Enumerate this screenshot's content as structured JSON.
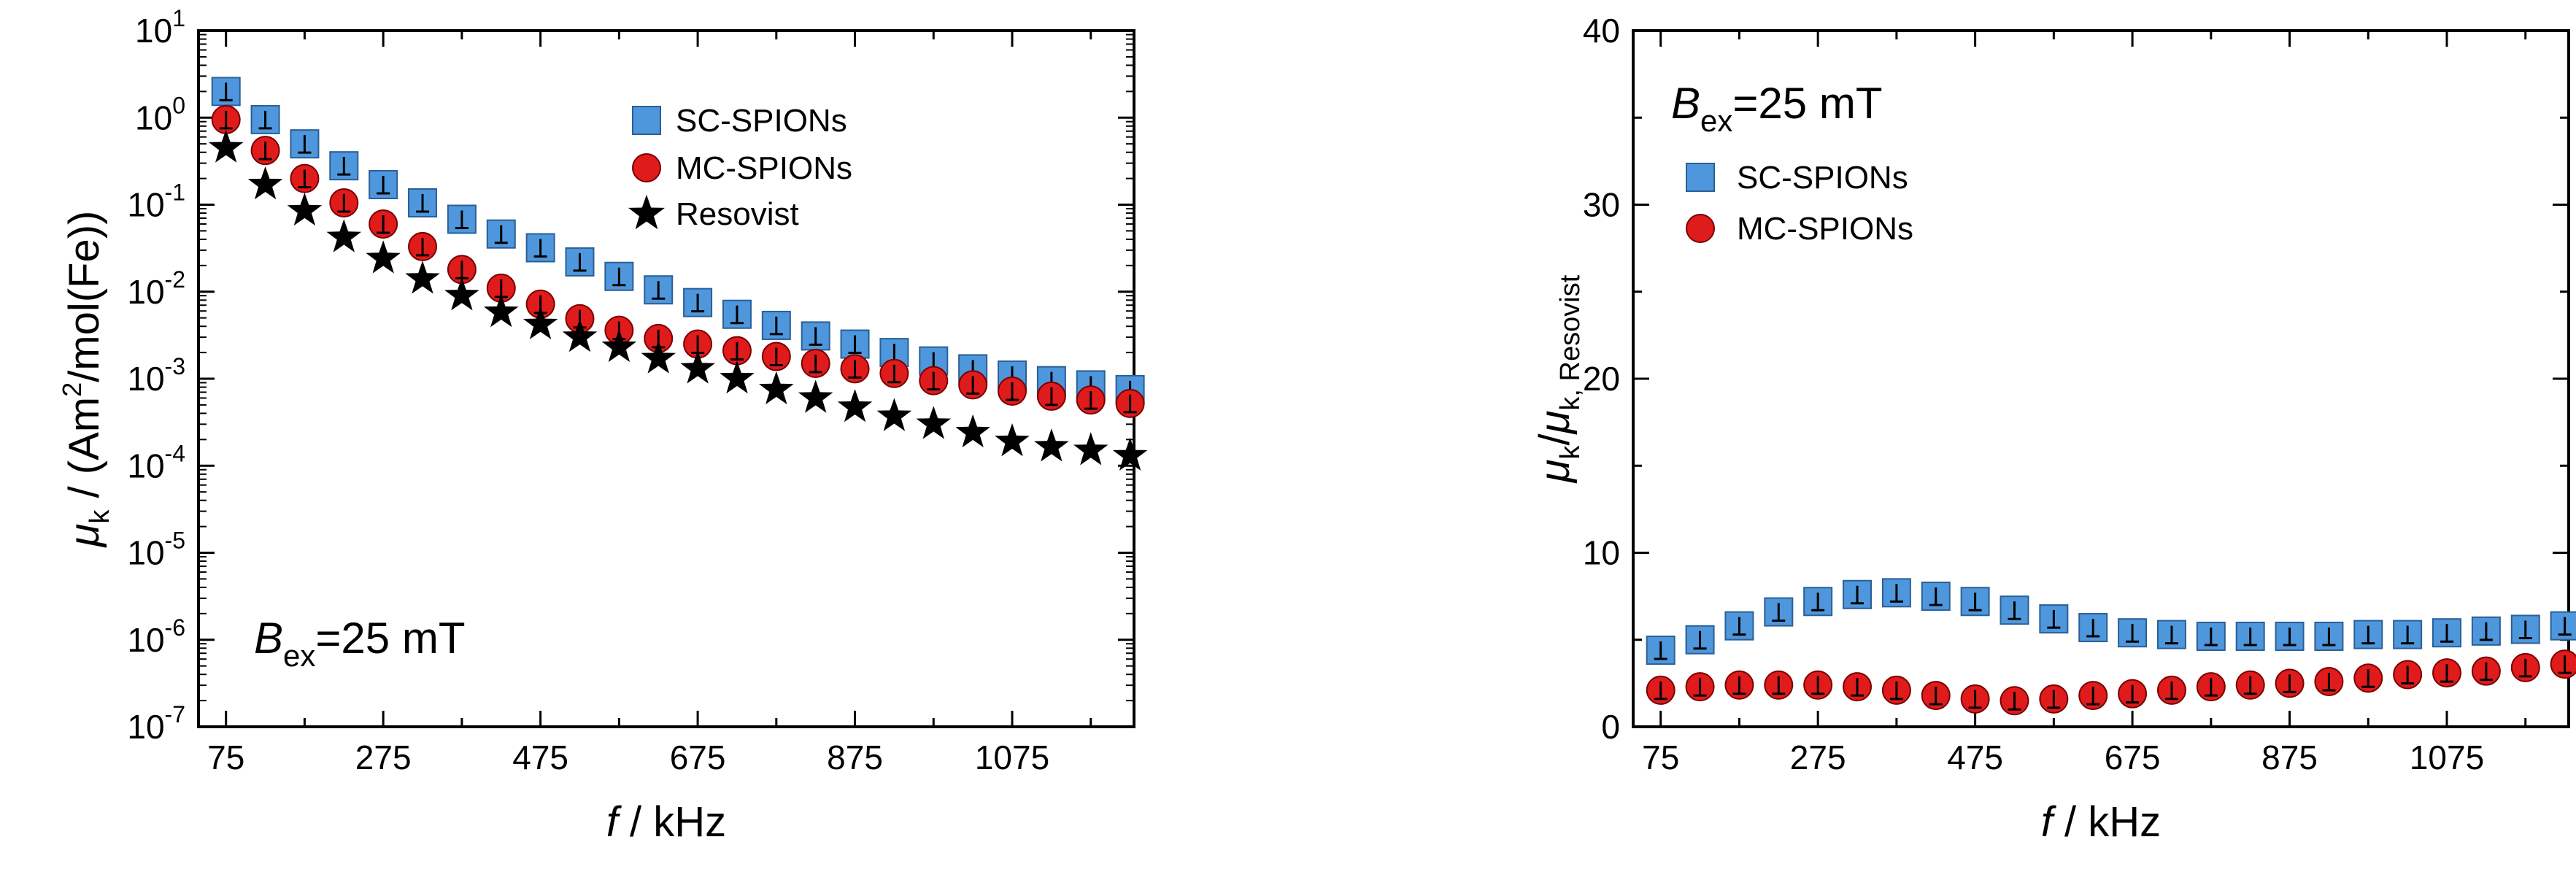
{
  "chart_data": [
    {
      "type": "scatter",
      "title": "",
      "xlabel_var": "f",
      "xlabel_unit": " / kHz",
      "ylabel": "μk / (Am²/mol(Fe))",
      "ylabel_parts": {
        "mu": "μ",
        "sub": "k",
        "mid": " / (Am",
        "sup": "2",
        "tail": "/mol(Fe))"
      },
      "yscale": "log",
      "xlim": [
        40,
        1230
      ],
      "ylim_exp": [
        -7,
        1
      ],
      "xticks": [
        75,
        275,
        475,
        675,
        875,
        1075
      ],
      "xtick_labels": [
        "75",
        "275",
        "475",
        "675",
        "875",
        "1075"
      ],
      "yticks_exp": [
        -7,
        -6,
        -5,
        -4,
        -3,
        -2,
        -1,
        0,
        1
      ],
      "ytick_base": "10",
      "ytick_exps": [
        "-7",
        "-6",
        "-5",
        "-4",
        "-3",
        "-2",
        "-1",
        "0",
        "1"
      ],
      "annotation": {
        "var": "B",
        "sub": "ex",
        "text": "=25 mT"
      },
      "legend_position": "top-right",
      "x": [
        75,
        125,
        175,
        225,
        275,
        325,
        375,
        425,
        475,
        525,
        575,
        625,
        675,
        725,
        775,
        825,
        875,
        925,
        975,
        1025,
        1075,
        1125,
        1175,
        1225
      ],
      "series": [
        {
          "name": "SC-SPIONs",
          "marker": "square",
          "color": "#4f97dc",
          "values": [
            2.0,
            0.95,
            0.5,
            0.28,
            0.17,
            0.105,
            0.068,
            0.046,
            0.032,
            0.022,
            0.015,
            0.0105,
            0.0075,
            0.0055,
            0.0041,
            0.0031,
            0.0025,
            0.002,
            0.0016,
            0.0013,
            0.0011,
            0.00095,
            0.00085,
            0.00075
          ]
        },
        {
          "name": "MC-SPIONs",
          "marker": "circle",
          "color": "#e01b1b",
          "values": [
            0.95,
            0.42,
            0.2,
            0.105,
            0.06,
            0.033,
            0.018,
            0.011,
            0.0072,
            0.0049,
            0.0036,
            0.0029,
            0.0025,
            0.0021,
            0.0018,
            0.0015,
            0.0013,
            0.00115,
            0.00095,
            0.00085,
            0.00072,
            0.00063,
            0.00057,
            0.00052
          ]
        },
        {
          "name": "Resovist",
          "marker": "star",
          "color": "#000000",
          "values": [
            0.45,
            0.17,
            0.085,
            0.042,
            0.024,
            0.014,
            0.009,
            0.0058,
            0.0042,
            0.003,
            0.0023,
            0.0017,
            0.0013,
            0.001,
            0.00075,
            0.0006,
            0.00047,
            0.00037,
            0.0003,
            0.00024,
            0.00019,
            0.000165,
            0.00015,
            0.00013
          ]
        }
      ]
    },
    {
      "type": "scatter",
      "title": "",
      "xlabel_var": "f",
      "xlabel_unit": " / kHz",
      "ylabel": "μk/μk,Resovist",
      "ylabel_parts": {
        "mu1": "μ",
        "sub1": "k",
        "slash": "/",
        "mu2": "μ",
        "sub2": "k, Resovist"
      },
      "yscale": "linear",
      "xlim": [
        40,
        1230
      ],
      "ylim": [
        0,
        40
      ],
      "xticks": [
        75,
        275,
        475,
        675,
        875,
        1075
      ],
      "xtick_labels": [
        "75",
        "275",
        "475",
        "675",
        "875",
        "1075"
      ],
      "yticks": [
        0,
        10,
        20,
        30,
        40
      ],
      "ytick_labels": [
        "0",
        "10",
        "20",
        "30",
        "40"
      ],
      "annotation": {
        "var": "B",
        "sub": "ex",
        "text": "=25 mT"
      },
      "legend_position": "top-left",
      "x": [
        75,
        125,
        175,
        225,
        275,
        325,
        375,
        425,
        475,
        525,
        575,
        625,
        675,
        725,
        775,
        825,
        875,
        925,
        975,
        1025,
        1075,
        1125,
        1175,
        1225
      ],
      "series": [
        {
          "name": "SC-SPIONs",
          "marker": "square",
          "color": "#4f97dc",
          "values": [
            4.4,
            5.0,
            5.8,
            6.6,
            7.2,
            7.6,
            7.7,
            7.5,
            7.2,
            6.7,
            6.2,
            5.7,
            5.4,
            5.3,
            5.2,
            5.2,
            5.2,
            5.2,
            5.3,
            5.3,
            5.4,
            5.5,
            5.6,
            5.8
          ]
        },
        {
          "name": "MC-SPIONs",
          "marker": "circle",
          "color": "#e01b1b",
          "values": [
            2.1,
            2.3,
            2.4,
            2.4,
            2.4,
            2.3,
            2.1,
            1.8,
            1.6,
            1.5,
            1.6,
            1.8,
            1.9,
            2.1,
            2.3,
            2.4,
            2.5,
            2.6,
            2.8,
            3.0,
            3.1,
            3.2,
            3.4,
            3.6
          ]
        }
      ]
    }
  ]
}
